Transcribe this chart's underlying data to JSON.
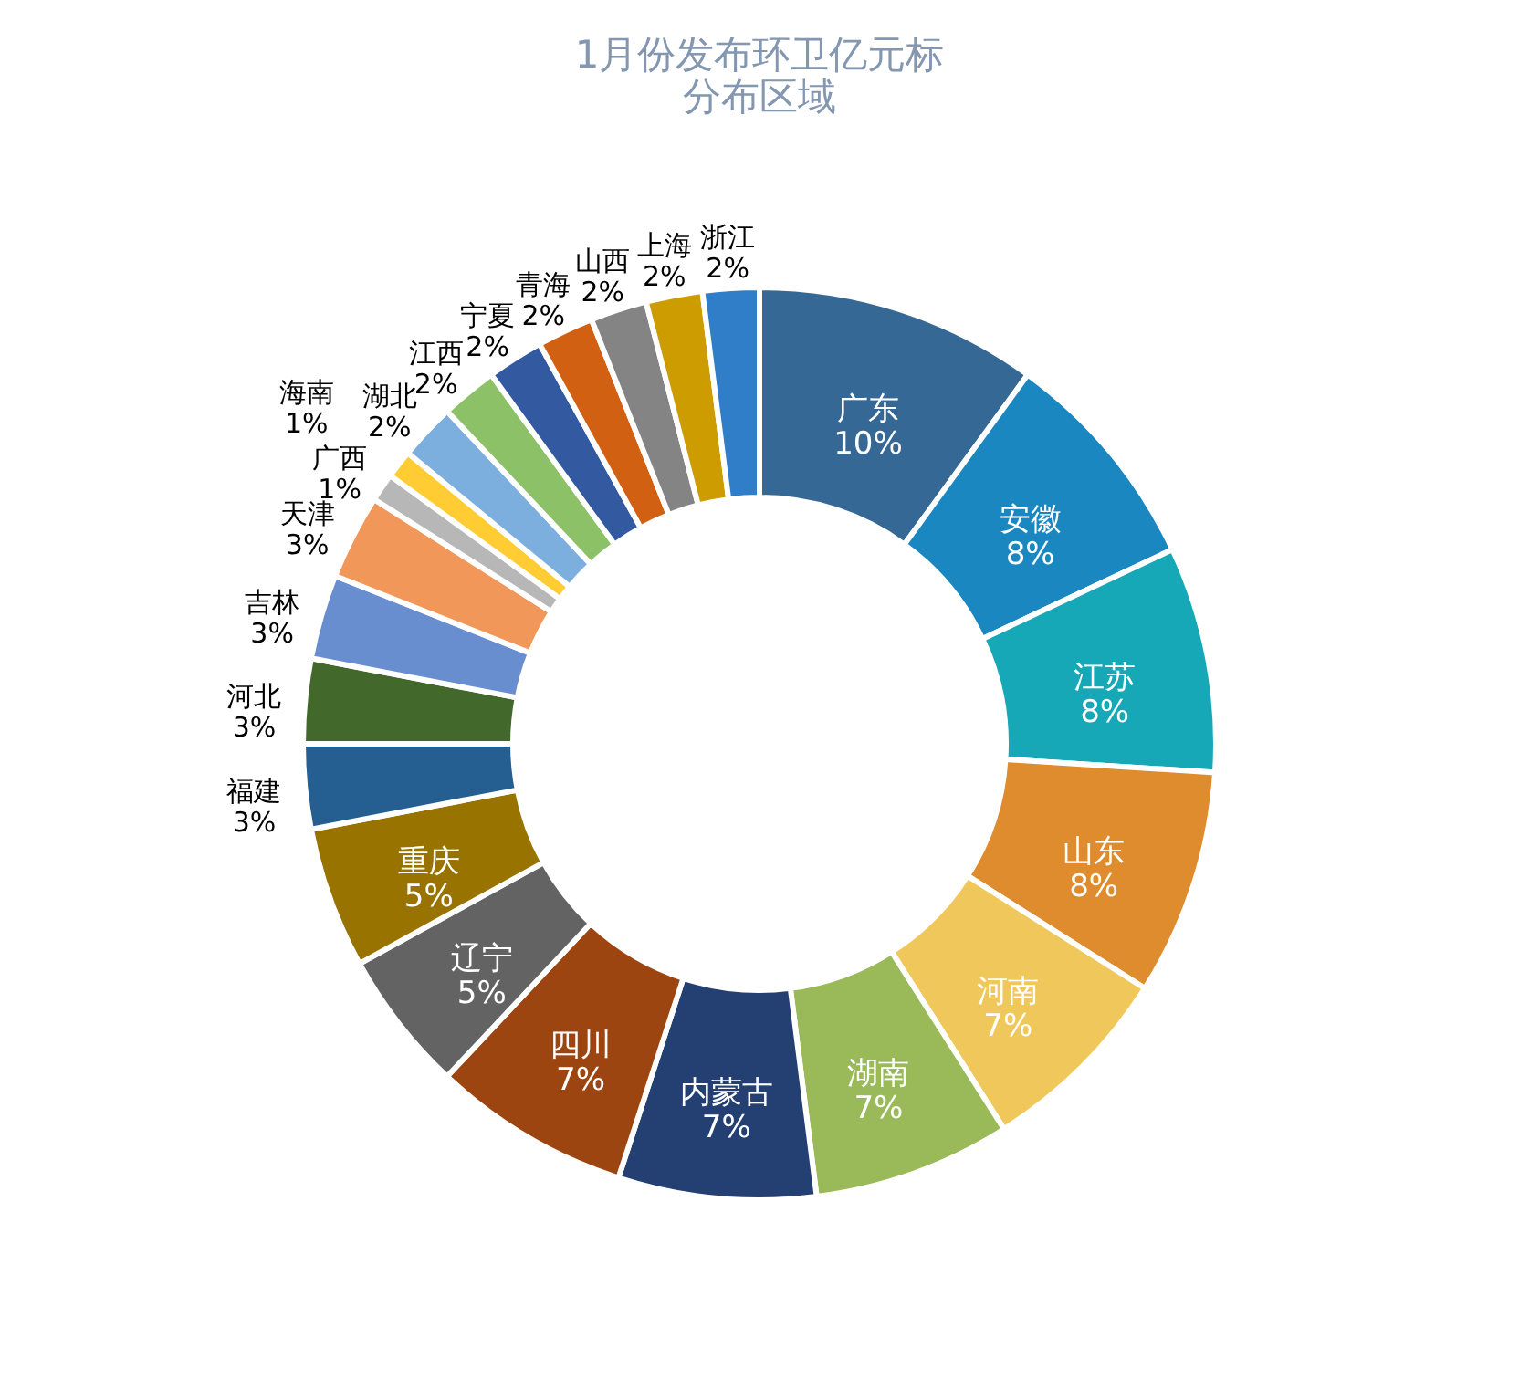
{
  "chart_data": {
    "type": "donut",
    "title": [
      "1月份发布环卫亿元标",
      "分布区域"
    ],
    "categories": [
      "广东",
      "安徽",
      "江苏",
      "山东",
      "河南",
      "湖南",
      "内蒙古",
      "四川",
      "辽宁",
      "重庆",
      "福建",
      "河北",
      "吉林",
      "天津",
      "广西",
      "海南",
      "湖北",
      "江西",
      "宁夏",
      "青海",
      "山西",
      "上海",
      "浙江"
    ],
    "values": [
      10,
      8,
      8,
      8,
      7,
      7,
      7,
      7,
      5,
      5,
      3,
      3,
      3,
      3,
      1,
      1,
      2,
      2,
      2,
      2,
      2,
      2,
      2
    ],
    "value_labels": [
      "10%",
      "8%",
      "8%",
      "8%",
      "7%",
      "7%",
      "7%",
      "7%",
      "5%",
      "5%",
      "3%",
      "3%",
      "3%",
      "3%",
      "1%",
      "1%",
      "2%",
      "2%",
      "2%",
      "2%",
      "2%",
      "2%",
      "2%"
    ],
    "colors": [
      "#356895",
      "#1a87c0",
      "#17a8b8",
      "#de8c2e",
      "#f0c75a",
      "#9aba59",
      "#243f72",
      "#9c4510",
      "#636363",
      "#997300",
      "#255e91",
      "#43682b",
      "#698ed0",
      "#f1975a",
      "#b7b7b7",
      "#ffcd33",
      "#7cafdd",
      "#8cc168",
      "#335aa1",
      "#d26012",
      "#848484",
      "#cc9c00",
      "#2f7ec7"
    ],
    "legend": false
  }
}
